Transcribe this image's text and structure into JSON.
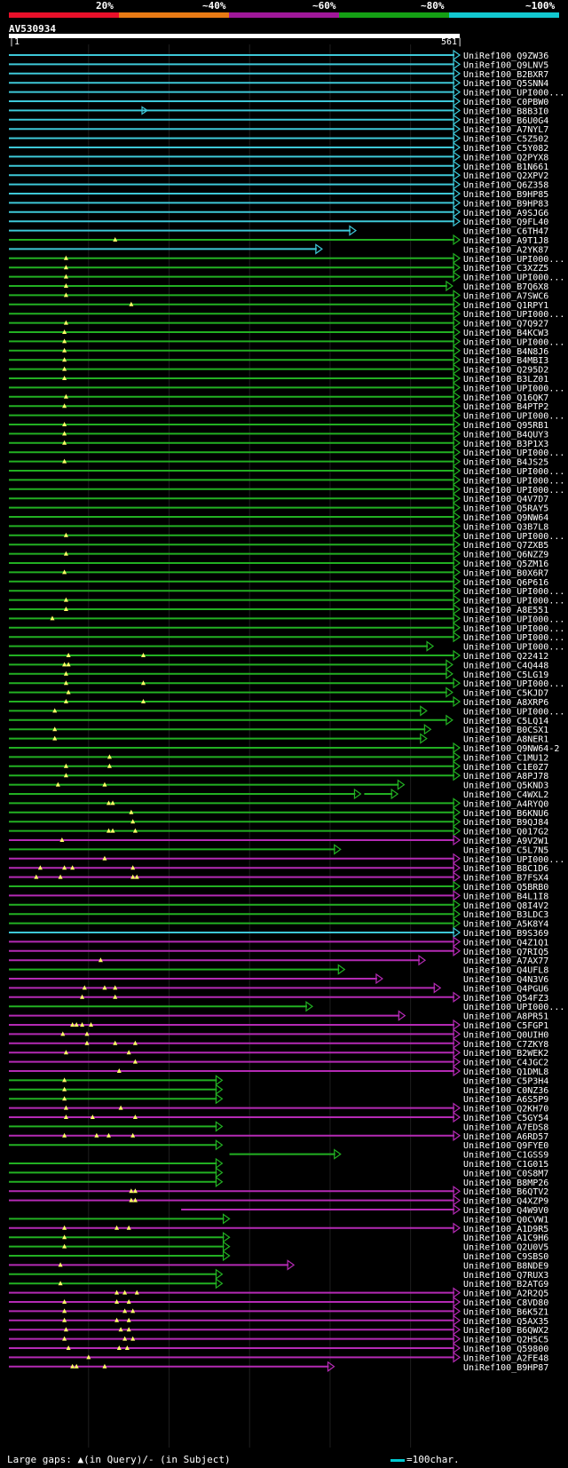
{
  "legend": {
    "labels": [
      "20%",
      "~40%",
      "~60%",
      "~80%",
      "~100%"
    ],
    "colors": [
      "#e8102a",
      "#e87a14",
      "#a0189a",
      "#14a014",
      "#12c8d0"
    ]
  },
  "query": {
    "name": "AV530934",
    "start": "1",
    "end": "561",
    "length": 561
  },
  "footer": {
    "gaps_label": "Large gaps: ▲(in Query)/- (in Subject)",
    "scale_label": "=100char."
  },
  "hits": [
    {
      "label": "UniRef100_Q9ZW36",
      "color": "cyan",
      "end": 561,
      "gaps": []
    },
    {
      "label": "UniRef100_Q9LNV5",
      "color": "cyan",
      "end": 561,
      "gaps": []
    },
    {
      "label": "UniRef100_B2BXR7",
      "color": "cyan",
      "end": 561,
      "gaps": []
    },
    {
      "label": "UniRef100_Q5SNN4",
      "color": "cyan",
      "end": 561,
      "gaps": []
    },
    {
      "label": "UniRef100_UPI000...",
      "color": "cyan",
      "end": 561,
      "gaps": []
    },
    {
      "label": "UniRef100_C0PBW0",
      "color": "cyan",
      "end": 561,
      "gaps": []
    },
    {
      "label": "UniRef100_B8B3I0",
      "color": "cyan",
      "end": 561,
      "gaps": [],
      "mid_arrow": 173
    },
    {
      "label": "UniRef100_B6U0G4",
      "color": "cyan",
      "end": 561,
      "gaps": []
    },
    {
      "label": "UniRef100_A7NYL7",
      "color": "cyan",
      "end": 561,
      "gaps": []
    },
    {
      "label": "UniRef100_C5Z502",
      "color": "cyan",
      "end": 561,
      "gaps": []
    },
    {
      "label": "UniRef100_C5Y082",
      "color": "cyan",
      "end": 561,
      "gaps": []
    },
    {
      "label": "UniRef100_Q2PYX8",
      "color": "cyan",
      "end": 561,
      "gaps": []
    },
    {
      "label": "UniRef100_B1N661",
      "color": "cyan",
      "end": 561,
      "gaps": []
    },
    {
      "label": "UniRef100_Q2XPV2",
      "color": "cyan",
      "end": 561,
      "gaps": []
    },
    {
      "label": "UniRef100_Q6Z358",
      "color": "cyan",
      "end": 561,
      "gaps": []
    },
    {
      "label": "UniRef100_B9HP85",
      "color": "cyan",
      "end": 561,
      "gaps": []
    },
    {
      "label": "UniRef100_B9HP83",
      "color": "cyan",
      "end": 561,
      "gaps": []
    },
    {
      "label": "UniRef100_A9SJG6",
      "color": "cyan",
      "end": 561,
      "gaps": []
    },
    {
      "label": "UniRef100_Q9FL40",
      "color": "cyan",
      "end": 561,
      "gaps": []
    },
    {
      "label": "UniRef100_C6TH47",
      "color": "cyan",
      "end": 432,
      "gaps": []
    },
    {
      "label": "UniRef100_A9T1J8",
      "color": "green",
      "end": 561,
      "gaps": [
        133
      ]
    },
    {
      "label": "UniRef100_A2YK87",
      "color": "cyan",
      "end": 390,
      "gaps": []
    },
    {
      "label": "UniRef100_UPI000...",
      "color": "green",
      "end": 561,
      "gaps": [
        72
      ]
    },
    {
      "label": "UniRef100_C3XZZ5",
      "color": "green",
      "end": 561,
      "gaps": [
        72
      ]
    },
    {
      "label": "UniRef100_UPI000...",
      "color": "green",
      "end": 561,
      "gaps": [
        72
      ]
    },
    {
      "label": "UniRef100_B7Q6X8",
      "color": "green",
      "end": 552,
      "gaps": [
        72
      ]
    },
    {
      "label": "UniRef100_A7SWC6",
      "color": "green",
      "end": 561,
      "gaps": [
        72
      ]
    },
    {
      "label": "UniRef100_Q1RPY1",
      "color": "green",
      "end": 561,
      "gaps": [
        153
      ]
    },
    {
      "label": "UniRef100_UPI000...",
      "color": "green",
      "end": 561,
      "gaps": []
    },
    {
      "label": "UniRef100_Q7Q927",
      "color": "green",
      "end": 561,
      "gaps": [
        72
      ]
    },
    {
      "label": "UniRef100_B4KCW3",
      "color": "green",
      "end": 561,
      "gaps": [
        70
      ]
    },
    {
      "label": "UniRef100_UPI000...",
      "color": "green",
      "end": 561,
      "gaps": [
        70
      ]
    },
    {
      "label": "UniRef100_B4N8J6",
      "color": "green",
      "end": 561,
      "gaps": [
        70
      ]
    },
    {
      "label": "UniRef100_B4MBI3",
      "color": "green",
      "end": 561,
      "gaps": [
        70
      ]
    },
    {
      "label": "UniRef100_Q295D2",
      "color": "green",
      "end": 561,
      "gaps": [
        70
      ]
    },
    {
      "label": "UniRef100_B3LZ01",
      "color": "green",
      "end": 561,
      "gaps": [
        70
      ]
    },
    {
      "label": "UniRef100_UPI000...",
      "color": "green",
      "end": 561,
      "gaps": []
    },
    {
      "label": "UniRef100_Q16QK7",
      "color": "green",
      "end": 561,
      "gaps": [
        72
      ]
    },
    {
      "label": "UniRef100_B4PTP2",
      "color": "green",
      "end": 561,
      "gaps": [
        70
      ]
    },
    {
      "label": "UniRef100_UPI000...",
      "color": "green",
      "end": 561,
      "gaps": []
    },
    {
      "label": "UniRef100_Q95RB1",
      "color": "green",
      "end": 561,
      "gaps": [
        70
      ]
    },
    {
      "label": "UniRef100_B4QUY3",
      "color": "green",
      "end": 561,
      "gaps": [
        70
      ]
    },
    {
      "label": "UniRef100_B3P1X3",
      "color": "green",
      "end": 561,
      "gaps": [
        70
      ]
    },
    {
      "label": "UniRef100_UPI000...",
      "color": "green",
      "end": 561,
      "gaps": []
    },
    {
      "label": "UniRef100_B4JS25",
      "color": "green",
      "end": 561,
      "gaps": [
        70
      ]
    },
    {
      "label": "UniRef100_UPI000...",
      "color": "green",
      "end": 561,
      "gaps": []
    },
    {
      "label": "UniRef100_UPI000...",
      "color": "green",
      "end": 561,
      "gaps": []
    },
    {
      "label": "UniRef100_UPI000...",
      "color": "green",
      "end": 561,
      "gaps": []
    },
    {
      "label": "UniRef100_Q4V7D7",
      "color": "green",
      "end": 561,
      "gaps": []
    },
    {
      "label": "UniRef100_Q5RAY5",
      "color": "green",
      "end": 561,
      "gaps": []
    },
    {
      "label": "UniRef100_Q9NW64",
      "color": "green",
      "end": 561,
      "gaps": []
    },
    {
      "label": "UniRef100_Q3B7L8",
      "color": "green",
      "end": 561,
      "gaps": []
    },
    {
      "label": "UniRef100_UPI000...",
      "color": "green",
      "end": 561,
      "gaps": [
        72
      ]
    },
    {
      "label": "UniRef100_Q7ZXB5",
      "color": "green",
      "end": 561,
      "gaps": []
    },
    {
      "label": "UniRef100_Q6NZZ9",
      "color": "green",
      "end": 561,
      "gaps": [
        72
      ]
    },
    {
      "label": "UniRef100_Q5ZM16",
      "color": "green",
      "end": 561,
      "gaps": []
    },
    {
      "label": "UniRef100_B0X6R7",
      "color": "green",
      "end": 561,
      "gaps": [
        70
      ]
    },
    {
      "label": "UniRef100_Q6P616",
      "color": "green",
      "end": 561,
      "gaps": []
    },
    {
      "label": "UniRef100_UPI000...",
      "color": "green",
      "end": 561,
      "gaps": []
    },
    {
      "label": "UniRef100_UPI000...",
      "color": "green",
      "end": 561,
      "gaps": [
        72
      ]
    },
    {
      "label": "UniRef100_A8E551",
      "color": "green",
      "end": 561,
      "gaps": [
        72
      ]
    },
    {
      "label": "UniRef100_UPI000...",
      "color": "green",
      "end": 561,
      "gaps": [
        55
      ]
    },
    {
      "label": "UniRef100_UPI000...",
      "color": "green",
      "end": 561,
      "gaps": []
    },
    {
      "label": "UniRef100_UPI000...",
      "color": "green",
      "end": 561,
      "gaps": []
    },
    {
      "label": "UniRef100_UPI000...",
      "color": "green",
      "end": 528,
      "gaps": []
    },
    {
      "label": "UniRef100_Q22412",
      "color": "green",
      "end": 561,
      "gaps": [
        75,
        168
      ]
    },
    {
      "label": "UniRef100_C4Q448",
      "color": "green",
      "end": 552,
      "gaps": [
        70,
        75
      ]
    },
    {
      "label": "UniRef100_C5LG19",
      "color": "green",
      "end": 552,
      "gaps": [
        72
      ]
    },
    {
      "label": "UniRef100_UPI000...",
      "color": "green",
      "end": 561,
      "gaps": [
        72,
        168
      ]
    },
    {
      "label": "UniRef100_C5KJD7",
      "color": "green",
      "end": 552,
      "gaps": [
        75
      ]
    },
    {
      "label": "UniRef100_A8XRP6",
      "color": "green",
      "end": 561,
      "gaps": [
        72,
        168
      ]
    },
    {
      "label": "UniRef100_UPI000...",
      "color": "green",
      "end": 520,
      "gaps": [
        58
      ]
    },
    {
      "label": "UniRef100_C5LQ14",
      "color": "green",
      "end": 552,
      "gaps": []
    },
    {
      "label": "UniRef100_B0CSX1",
      "color": "green",
      "end": 525,
      "gaps": [
        58
      ]
    },
    {
      "label": "UniRef100_A8NER1",
      "color": "green",
      "end": 520,
      "gaps": [
        58
      ]
    },
    {
      "label": "UniRef100_Q9NW64-2",
      "color": "green",
      "end": 561,
      "gaps": []
    },
    {
      "label": "UniRef100_C1MU12",
      "color": "green",
      "end": 561,
      "gaps": [
        126
      ]
    },
    {
      "label": "UniRef100_C1E0Z7",
      "color": "green",
      "end": 561,
      "gaps": [
        72,
        126
      ]
    },
    {
      "label": "UniRef100_A8PJ78",
      "color": "green",
      "end": 561,
      "gaps": [
        72
      ]
    },
    {
      "label": "UniRef100_Q5KND3",
      "color": "green",
      "end": 492,
      "gaps": [
        62,
        120
      ]
    },
    {
      "label": "UniRef100_C4WXL2",
      "color": "green",
      "end": 438,
      "gaps": [],
      "mid_arrow": 438,
      "end2": 484
    },
    {
      "label": "UniRef100_A4RYQ0",
      "color": "green",
      "end": 561,
      "gaps": [
        125,
        130
      ]
    },
    {
      "label": "UniRef100_B6KNU6",
      "color": "green",
      "end": 561,
      "gaps": [
        153
      ]
    },
    {
      "label": "UniRef100_B9QJ84",
      "color": "green",
      "end": 561,
      "gaps": [
        155
      ]
    },
    {
      "label": "UniRef100_Q017G2",
      "color": "green",
      "end": 561,
      "gaps": [
        125,
        130,
        158
      ]
    },
    {
      "label": "UniRef100_A9V2W1",
      "color": "magenta",
      "end": 561,
      "gaps": [
        67
      ]
    },
    {
      "label": "UniRef100_C5L7N5",
      "color": "green",
      "end": 413,
      "gaps": []
    },
    {
      "label": "UniRef100_UPI000...",
      "color": "magenta",
      "end": 561,
      "gaps": [
        120
      ]
    },
    {
      "label": "UniRef100_B8C1D6",
      "color": "magenta",
      "end": 561,
      "gaps": [
        40,
        70,
        80,
        155
      ]
    },
    {
      "label": "UniRef100_B7FSX4",
      "color": "magenta",
      "end": 561,
      "gaps": [
        35,
        65,
        155,
        160
      ]
    },
    {
      "label": "UniRef100_Q5BRB0",
      "color": "green",
      "end": 561,
      "gaps": []
    },
    {
      "label": "UniRef100_B4L1I8",
      "color": "magenta",
      "end": 561,
      "gaps": []
    },
    {
      "label": "UniRef100_Q8I4V2",
      "color": "green",
      "end": 561,
      "gaps": []
    },
    {
      "label": "UniRef100_B3LDC3",
      "color": "green",
      "end": 561,
      "gaps": []
    },
    {
      "label": "UniRef100_A5K8Y4",
      "color": "green",
      "end": 561,
      "gaps": []
    },
    {
      "label": "UniRef100_B9S369",
      "color": "cyan",
      "end": 561,
      "gaps": []
    },
    {
      "label": "UniRef100_Q4Z1Q1",
      "color": "magenta",
      "end": 561,
      "gaps": []
    },
    {
      "label": "UniRef100_Q7RIQ5",
      "color": "magenta",
      "end": 561,
      "gaps": []
    },
    {
      "label": "UniRef100_A7AX77",
      "color": "magenta",
      "end": 518,
      "gaps": [
        115
      ]
    },
    {
      "label": "UniRef100_Q4UFL8",
      "color": "green",
      "end": 418,
      "gaps": []
    },
    {
      "label": "UniRef100_Q4N3V6",
      "color": "magenta",
      "end": 465,
      "gaps": []
    },
    {
      "label": "UniRef100_Q4PGU6",
      "color": "magenta",
      "end": 537,
      "gaps": [
        95,
        120,
        133
      ]
    },
    {
      "label": "UniRef100_Q54FZ3",
      "color": "magenta",
      "end": 561,
      "gaps": [
        92,
        133
      ]
    },
    {
      "label": "UniRef100_UPI000...",
      "color": "green",
      "end": 378,
      "gaps": []
    },
    {
      "label": "UniRef100_A8PR51",
      "color": "magenta",
      "end": 493,
      "gaps": []
    },
    {
      "label": "UniRef100_C5FGP1",
      "color": "magenta",
      "end": 561,
      "gaps": [
        80,
        85,
        92,
        103
      ]
    },
    {
      "label": "UniRef100_Q0UIH0",
      "color": "magenta",
      "end": 561,
      "gaps": [
        68,
        98
      ]
    },
    {
      "label": "UniRef100_C7ZKY8",
      "color": "magenta",
      "end": 561,
      "gaps": [
        98,
        133,
        158
      ]
    },
    {
      "label": "UniRef100_B2WEK2",
      "color": "magenta",
      "end": 561,
      "gaps": [
        72,
        150
      ]
    },
    {
      "label": "UniRef100_C4JGC2",
      "color": "magenta",
      "end": 561,
      "gaps": [
        158
      ]
    },
    {
      "label": "UniRef100_Q1DML8",
      "color": "magenta",
      "end": 561,
      "gaps": [
        138
      ]
    },
    {
      "label": "UniRef100_C5P3H4",
      "color": "green",
      "end": 266,
      "gaps": [
        70
      ]
    },
    {
      "label": "UniRef100_C0NZ36",
      "color": "green",
      "end": 266,
      "gaps": [
        70
      ]
    },
    {
      "label": "UniRef100_A6S5P9",
      "color": "green",
      "end": 266,
      "gaps": [
        70
      ]
    },
    {
      "label": "UniRef100_Q2KH70",
      "color": "magenta",
      "end": 561,
      "gaps": [
        72,
        140
      ]
    },
    {
      "label": "UniRef100_C5GY54",
      "color": "magenta",
      "end": 561,
      "gaps": [
        72,
        105,
        158
      ]
    },
    {
      "label": "UniRef100_A7EDS8",
      "color": "green",
      "end": 266,
      "gaps": []
    },
    {
      "label": "UniRef100_A6RD57",
      "color": "magenta",
      "end": 561,
      "gaps": [
        70,
        110,
        125,
        155
      ]
    },
    {
      "label": "UniRef100_Q9FYE0",
      "color": "green",
      "end": 266,
      "gaps": []
    },
    {
      "label": "UniRef100_C1GSS9",
      "color": "green",
      "end": 413,
      "gaps": [],
      "start": 275
    },
    {
      "label": "UniRef100_C1G015",
      "color": "green",
      "end": 266,
      "gaps": []
    },
    {
      "label": "UniRef100_C0S8M7",
      "color": "green",
      "end": 266,
      "gaps": []
    },
    {
      "label": "UniRef100_B8MP26",
      "color": "green",
      "end": 266,
      "gaps": []
    },
    {
      "label": "UniRef100_B6QTV2",
      "color": "magenta",
      "end": 561,
      "gaps": [
        153,
        158
      ]
    },
    {
      "label": "UniRef100_Q4XZP9",
      "color": "magenta",
      "end": 561,
      "gaps": [
        153,
        158
      ]
    },
    {
      "label": "UniRef100_Q4W9V0",
      "color": "magenta",
      "end": 561,
      "gaps": [],
      "start": 215
    },
    {
      "label": "UniRef100_Q0CVW1",
      "color": "green",
      "end": 275,
      "gaps": []
    },
    {
      "label": "UniRef100_A1D9R5",
      "color": "magenta",
      "end": 561,
      "gaps": [
        70,
        135,
        150
      ]
    },
    {
      "label": "UniRef100_A1C9H6",
      "color": "green",
      "end": 275,
      "gaps": [
        70
      ]
    },
    {
      "label": "UniRef100_Q2U0V5",
      "color": "green",
      "end": 275,
      "gaps": [
        70
      ]
    },
    {
      "label": "UniRef100_C9SBS0",
      "color": "green",
      "end": 275,
      "gaps": []
    },
    {
      "label": "UniRef100_B8NDE9",
      "color": "magenta",
      "end": 355,
      "gaps": [
        65
      ]
    },
    {
      "label": "UniRef100_Q7RUX3",
      "color": "green",
      "end": 266,
      "gaps": []
    },
    {
      "label": "UniRef100_B2ATG9",
      "color": "green",
      "end": 266,
      "gaps": [
        65
      ]
    },
    {
      "label": "UniRef100_A2R2Q5",
      "color": "magenta",
      "end": 561,
      "gaps": [
        135,
        145,
        160
      ]
    },
    {
      "label": "UniRef100_C8VD80",
      "color": "magenta",
      "end": 561,
      "gaps": [
        70,
        135,
        150
      ]
    },
    {
      "label": "UniRef100_B6K5Z1",
      "color": "magenta",
      "end": 561,
      "gaps": [
        70,
        145,
        155
      ]
    },
    {
      "label": "UniRef100_Q5AX35",
      "color": "magenta",
      "end": 561,
      "gaps": [
        70,
        135,
        150
      ]
    },
    {
      "label": "UniRef100_B6QWX2",
      "color": "magenta",
      "end": 561,
      "gaps": [
        72,
        140,
        150
      ]
    },
    {
      "label": "UniRef100_Q2H5C5",
      "color": "magenta",
      "end": 561,
      "gaps": [
        70,
        145,
        155
      ]
    },
    {
      "label": "UniRef100_Q59800",
      "color": "magenta",
      "end": 561,
      "gaps": [
        75,
        138,
        148
      ]
    },
    {
      "label": "UniRef100_A2FE48",
      "color": "magenta",
      "end": 561,
      "gaps": [
        100
      ]
    },
    {
      "label": "UniRef100_B9HP87",
      "color": "magenta",
      "end": 405,
      "gaps": [
        80,
        85,
        120
      ]
    }
  ]
}
